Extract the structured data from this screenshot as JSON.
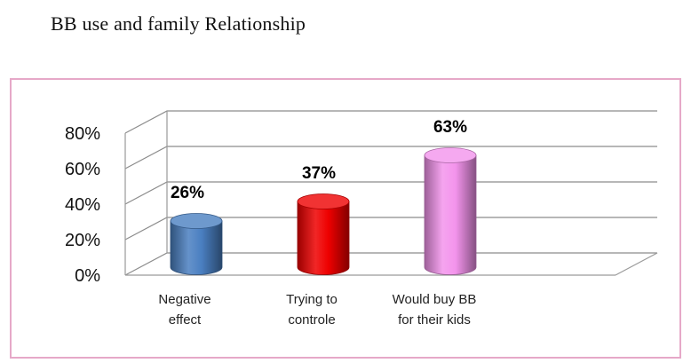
{
  "page": {
    "title": "BB use and family Relationship"
  },
  "chart_data": {
    "type": "bar",
    "style": "3d-cylinder",
    "categories": [
      [
        "Negative",
        "effect"
      ],
      [
        "Trying to",
        "controle"
      ],
      [
        "Would buy BB",
        "for their kids"
      ]
    ],
    "series": [
      {
        "values": [
          26,
          37,
          63
        ],
        "value_labels": [
          "26%",
          "37%",
          "63%"
        ]
      }
    ],
    "colors": [
      "#4a7fc1",
      "#ee0000",
      "#f394ec"
    ],
    "yticks": [
      "0%",
      "20%",
      "40%",
      "60%",
      "80%"
    ],
    "ylim": [
      0,
      80
    ],
    "grid": true,
    "legend": "none"
  }
}
